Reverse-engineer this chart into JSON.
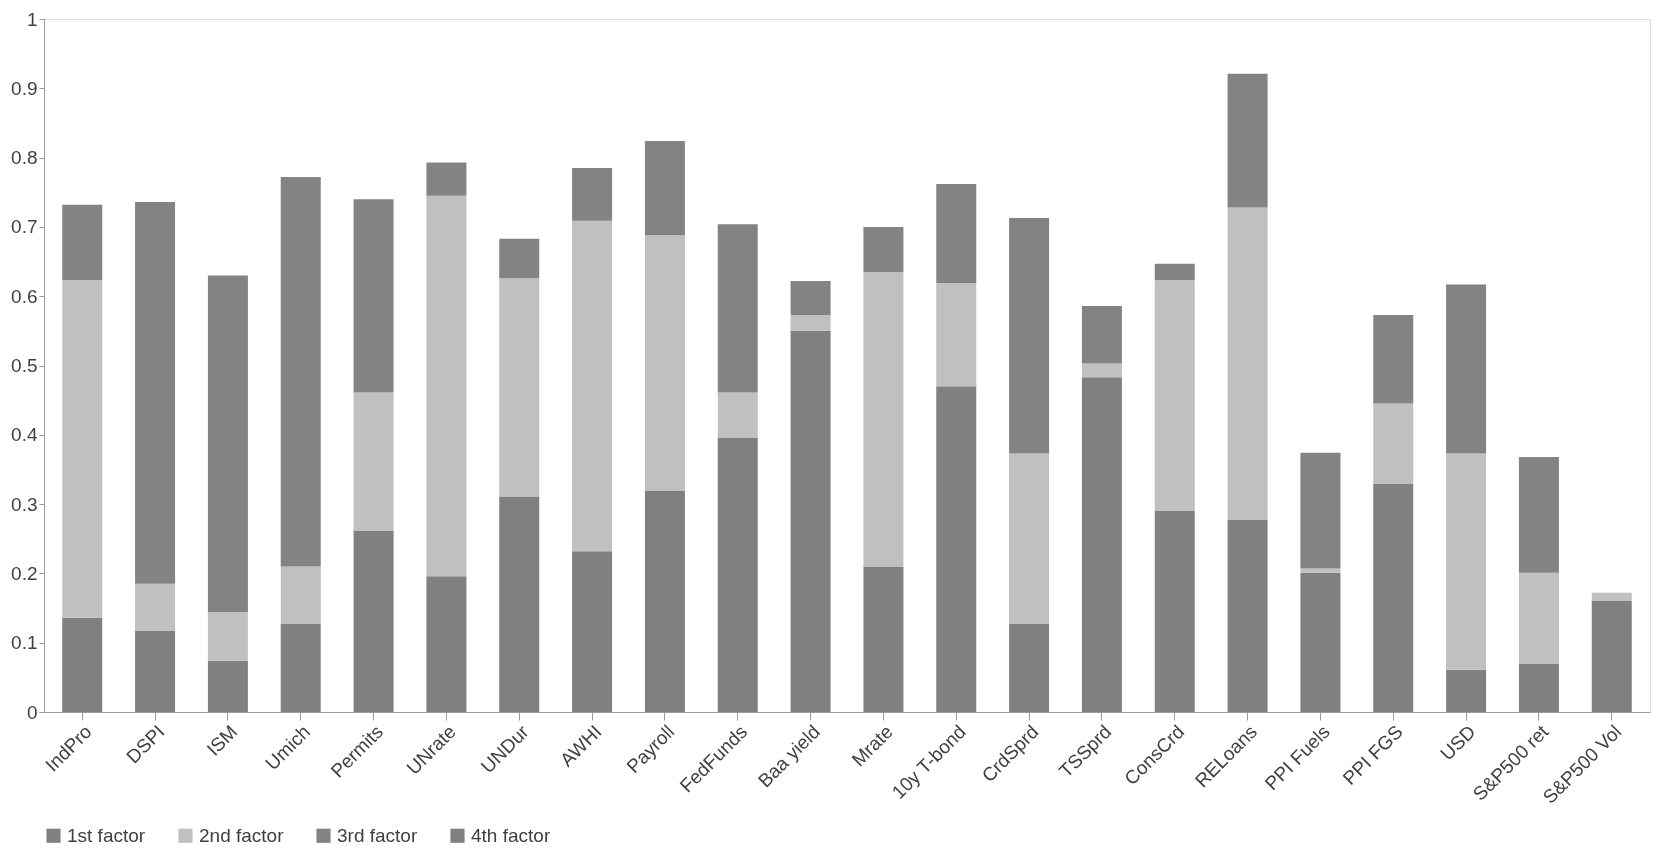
{
  "chart_data": {
    "type": "bar",
    "stacked": true,
    "categories": [
      "IndPro",
      "DSPI",
      "ISM",
      "Umich",
      "Permits",
      "UNrate",
      "UNDur",
      "AWHI",
      "Payroll",
      "FedFunds",
      "Baa yield",
      "Mrate",
      "10y T-bond",
      "CrdSprd",
      "TSSprd",
      "ConsCrd",
      "RELoans",
      "PPI Fuels",
      "PPI FGS",
      "USD",
      "S&P500 ret",
      "S&P500 Vol"
    ],
    "series": [
      {
        "name": "1st factor",
        "color": "#808080",
        "values": [
          0.136,
          0.117,
          0.074,
          0.127,
          0.262,
          0.196,
          0.311,
          0.232,
          0.319,
          0.396,
          0.55,
          0.21,
          0.47,
          0.127,
          0.483,
          0.29,
          0.277,
          0.201,
          0.329,
          0.061,
          0.07,
          0.16
        ]
      },
      {
        "name": "2nd factor",
        "color": "#c0c0c0",
        "values": [
          0.487,
          0.068,
          0.07,
          0.083,
          0.199,
          0.549,
          0.315,
          0.477,
          0.369,
          0.065,
          0.023,
          0.425,
          0.149,
          0.246,
          0.02,
          0.333,
          0.451,
          0.006,
          0.116,
          0.312,
          0.131,
          0.012
        ]
      },
      {
        "name": "3rd factor",
        "color": "#838383",
        "values": [
          0.109,
          0.551,
          0.486,
          0.562,
          0.279,
          0.048,
          0.057,
          0.076,
          0.136,
          0.243,
          0.049,
          0.065,
          0.143,
          0.34,
          0.083,
          0.024,
          0.193,
          0.167,
          0.128,
          0.244,
          0.167,
          0
        ]
      },
      {
        "name": "4th factor",
        "color": "#808080",
        "values": [
          0,
          0,
          0,
          0,
          0,
          0,
          0,
          0,
          0,
          0,
          0,
          0,
          0,
          0,
          0,
          0,
          0,
          0,
          0,
          0,
          0,
          0
        ]
      }
    ],
    "ylim": [
      0,
      1
    ],
    "yticks": [
      0,
      0.1,
      0.2,
      0.3,
      0.4,
      0.5,
      0.6,
      0.7,
      0.8,
      0.9,
      1
    ],
    "grid": false,
    "legend": "bottom"
  }
}
